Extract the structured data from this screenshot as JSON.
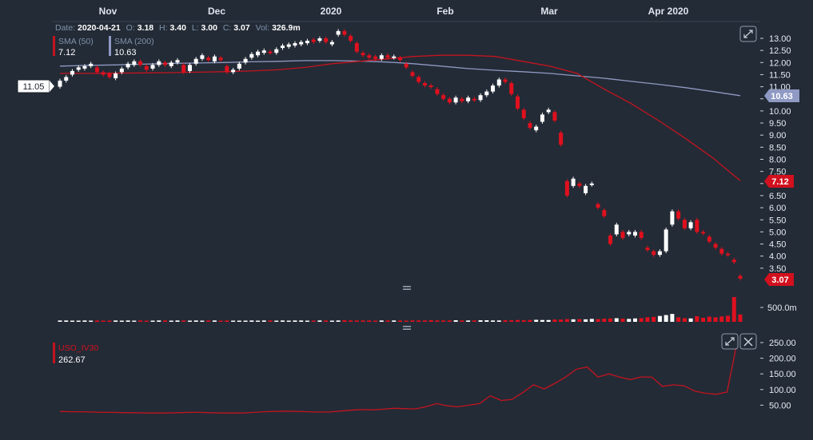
{
  "info": {
    "date_label": "Date:",
    "date": "2020-04-21",
    "o_label": "O:",
    "o": "3.18",
    "h_label": "H:",
    "h": "3.40",
    "l_label": "L:",
    "l": "3.00",
    "c_label": "C:",
    "c": "3.07",
    "vol_label": "Vol:",
    "vol": "326.9m"
  },
  "legend": {
    "sma50_name": "SMA (50)",
    "sma50_value": "7.12",
    "sma200_name": "SMA (200)",
    "sma200_value": "10.63",
    "iv_name": "USO_IV30",
    "iv_value": "262.67"
  },
  "crosshair_label": "11.05",
  "badges": {
    "sma200": "10.63",
    "sma50": "7.12",
    "last": "3.07"
  },
  "volume_label": "500.0m",
  "colors": {
    "bg": "#232b36",
    "up": "#ffffff",
    "down": "#e0101e",
    "sma50": "#c3141f",
    "sma200": "#8f9ac4",
    "iv": "#c3141f",
    "grid": "#2b3440"
  },
  "icons": [
    "expand-icon",
    "close-icon",
    "drag-handle-icon"
  ],
  "chart_data": {
    "type": "candlestick",
    "x_axis_labels": [
      "Nov",
      "Dec",
      "2020",
      "Feb",
      "Mar",
      "Apr 2020"
    ],
    "price_axis": {
      "min": 3.0,
      "max": 13.0,
      "ticks": [
        "13.00",
        "12.50",
        "12.00",
        "11.50",
        "11.00",
        "10.50",
        "10.00",
        "9.50",
        "9.00",
        "8.50",
        "8.00",
        "7.50",
        "7.00",
        "6.50",
        "6.00",
        "5.50",
        "5.00",
        "4.50",
        "4.00",
        "3.50"
      ]
    },
    "iv_axis": {
      "ticks": [
        "250.00",
        "200.00",
        "150.00",
        "100.00",
        "50.00"
      ]
    },
    "candles": [
      [
        11.0,
        11.25
      ],
      [
        11.25,
        11.4
      ],
      [
        11.5,
        11.65
      ],
      [
        11.7,
        11.8
      ],
      [
        11.75,
        11.85
      ],
      [
        11.85,
        11.95
      ],
      [
        11.8,
        11.6
      ],
      [
        11.6,
        11.5
      ],
      [
        11.55,
        11.4
      ],
      [
        11.35,
        11.55
      ],
      [
        11.6,
        11.75
      ],
      [
        11.8,
        11.95
      ],
      [
        11.9,
        12.05
      ],
      [
        12.05,
        11.9
      ],
      [
        11.85,
        11.7
      ],
      [
        11.75,
        11.9
      ],
      [
        11.9,
        12.05
      ],
      [
        12.0,
        11.9
      ],
      [
        11.85,
        12.0
      ],
      [
        12.0,
        12.1
      ],
      [
        11.9,
        11.6
      ],
      [
        11.65,
        11.9
      ],
      [
        11.95,
        12.15
      ],
      [
        12.15,
        12.3
      ],
      [
        12.2,
        12.1
      ],
      [
        12.05,
        12.25
      ],
      [
        12.2,
        12.1
      ],
      [
        11.85,
        11.6
      ],
      [
        11.6,
        11.7
      ],
      [
        11.75,
        11.95
      ],
      [
        12.0,
        12.15
      ],
      [
        12.2,
        12.35
      ],
      [
        12.3,
        12.45
      ],
      [
        12.4,
        12.5
      ],
      [
        12.45,
        12.4
      ],
      [
        12.4,
        12.55
      ],
      [
        12.6,
        12.7
      ],
      [
        12.65,
        12.75
      ],
      [
        12.7,
        12.8
      ],
      [
        12.75,
        12.85
      ],
      [
        12.8,
        12.9
      ],
      [
        12.95,
        12.85
      ],
      [
        12.9,
        13.0
      ],
      [
        13.0,
        12.85
      ],
      [
        12.75,
        12.85
      ],
      [
        13.15,
        13.3
      ],
      [
        13.3,
        13.15
      ],
      [
        13.1,
        12.9
      ],
      [
        12.8,
        12.45
      ],
      [
        12.4,
        12.3
      ],
      [
        12.3,
        12.2
      ],
      [
        12.25,
        12.15
      ],
      [
        12.15,
        12.3
      ],
      [
        12.3,
        12.2
      ],
      [
        12.2,
        12.25
      ],
      [
        12.2,
        12.1
      ],
      [
        11.95,
        11.8
      ],
      [
        11.6,
        11.45
      ],
      [
        11.4,
        11.2
      ],
      [
        11.15,
        11.05
      ],
      [
        11.05,
        11.0
      ],
      [
        10.9,
        10.7
      ],
      [
        10.65,
        10.5
      ],
      [
        10.5,
        10.35
      ],
      [
        10.35,
        10.55
      ],
      [
        10.5,
        10.4
      ],
      [
        10.4,
        10.55
      ],
      [
        10.5,
        10.45
      ],
      [
        10.45,
        10.65
      ],
      [
        10.65,
        10.8
      ],
      [
        10.8,
        11.05
      ],
      [
        11.05,
        11.3
      ],
      [
        11.3,
        11.2
      ],
      [
        11.15,
        10.7
      ],
      [
        10.6,
        10.1
      ],
      [
        10.05,
        9.7
      ],
      [
        9.5,
        9.3
      ],
      [
        9.2,
        9.35
      ],
      [
        9.55,
        9.85
      ],
      [
        9.95,
        10.05
      ],
      [
        9.95,
        9.6
      ],
      [
        9.1,
        8.6
      ],
      [
        7.1,
        6.5
      ],
      [
        6.9,
        7.2
      ],
      [
        7.0,
        6.9
      ],
      [
        6.6,
        6.9
      ],
      [
        6.95,
        7.0
      ],
      [
        6.15,
        6.0
      ],
      [
        5.9,
        5.65
      ],
      [
        4.85,
        4.5
      ],
      [
        4.9,
        5.3
      ],
      [
        5.0,
        4.75
      ],
      [
        4.9,
        5.0
      ],
      [
        4.85,
        5.0
      ],
      [
        5.0,
        4.75
      ],
      [
        4.35,
        4.25
      ],
      [
        4.2,
        4.05
      ],
      [
        4.05,
        4.2
      ],
      [
        4.2,
        5.1
      ],
      [
        5.3,
        5.85
      ],
      [
        5.85,
        5.55
      ],
      [
        5.5,
        5.15
      ],
      [
        5.15,
        5.4
      ],
      [
        5.5,
        5.0
      ],
      [
        5.0,
        4.95
      ],
      [
        4.8,
        4.6
      ],
      [
        4.5,
        4.35
      ],
      [
        4.3,
        4.1
      ],
      [
        4.1,
        4.05
      ],
      [
        3.85,
        3.75
      ],
      [
        3.18,
        3.07
      ]
    ],
    "volume_millions": [
      60,
      60,
      50,
      50,
      60,
      50,
      60,
      50,
      50,
      60,
      50,
      60,
      50,
      60,
      50,
      50,
      60,
      60,
      50,
      60,
      60,
      50,
      60,
      50,
      60,
      60,
      50,
      60,
      50,
      50,
      50,
      60,
      50,
      60,
      60,
      50,
      60,
      50,
      60,
      60,
      50,
      50,
      60,
      60,
      50,
      60,
      70,
      60,
      60,
      60,
      60,
      50,
      60,
      60,
      60,
      60,
      50,
      60,
      60,
      60,
      70,
      60,
      60,
      60,
      70,
      60,
      60,
      60,
      70,
      70,
      60,
      60,
      70,
      70,
      80,
      70,
      80,
      90,
      80,
      80,
      100,
      100,
      120,
      110,
      120,
      110,
      130,
      120,
      140,
      150,
      160,
      140,
      130,
      150,
      160,
      200,
      220,
      260,
      300,
      350,
      200,
      160,
      150,
      250,
      180,
      230,
      200,
      240,
      270,
      1100,
      326.9
    ],
    "sma50": [
      11.55,
      11.55,
      11.56,
      11.57,
      11.58,
      11.6,
      11.62,
      11.65,
      11.7,
      11.8,
      11.95,
      12.05,
      12.15,
      12.25,
      12.3,
      12.3,
      12.25,
      12.05,
      11.85,
      11.55,
      10.9,
      10.3,
      9.6,
      8.85,
      8.05,
      7.12
    ],
    "sma200": [
      11.85,
      11.88,
      11.9,
      11.93,
      11.96,
      11.98,
      12.0,
      12.03,
      12.05,
      12.08,
      12.08,
      12.06,
      12.02,
      11.95,
      11.85,
      11.75,
      11.68,
      11.62,
      11.55,
      11.45,
      11.35,
      11.22,
      11.1,
      10.96,
      10.8,
      10.63
    ],
    "iv30": [
      30,
      29,
      29,
      28,
      27,
      27,
      26,
      26,
      25,
      25,
      25,
      26,
      27,
      27,
      26,
      25,
      25,
      25,
      27,
      29,
      30,
      31,
      30,
      29,
      28,
      28,
      31,
      34,
      36,
      35,
      37,
      40,
      39,
      38,
      45,
      55,
      48,
      45,
      50,
      55,
      80,
      65,
      68,
      90,
      115,
      102,
      120,
      140,
      165,
      172,
      140,
      150,
      140,
      132,
      140,
      140,
      110,
      115,
      112,
      95,
      88,
      85,
      92,
      262.67
    ]
  }
}
